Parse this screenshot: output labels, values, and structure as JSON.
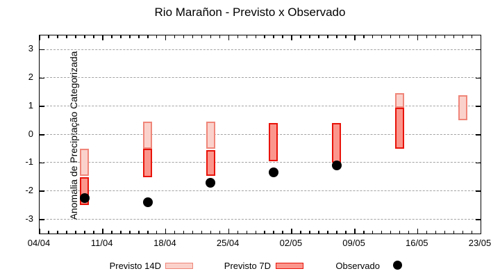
{
  "chart_data": {
    "type": "ranged-bar+scatter",
    "title": "Rio Marañon - Previsto x Observado",
    "ylabel": "Anomalia de Preciptação Categorizada",
    "xlabel": "",
    "ylim": [
      -3.5,
      3.5
    ],
    "y_ticks": [
      3,
      2,
      1,
      0,
      -1,
      -2,
      -3
    ],
    "x_major_ticks": [
      "04/04",
      "11/04",
      "18/04",
      "25/04",
      "02/05",
      "09/05",
      "16/05",
      "23/05"
    ],
    "x_minor_tick_interval_days": 1,
    "x_range_days": 49,
    "grid": "horizontal-dashed",
    "legend_position": "bottom",
    "colors": {
      "grid": "#a3a3a3",
      "axis": "#000000",
      "background": "#ffffff"
    },
    "series": [
      {
        "name": "Previsto 14D",
        "type": "range-bar",
        "fill": "#fbd2cb",
        "border": "#ef8579",
        "points": [
          {
            "date": "09/04",
            "hi": -0.5,
            "lo": -1.45
          },
          {
            "date": "16/04",
            "hi": 0.45,
            "lo": -0.5
          },
          {
            "date": "23/04",
            "hi": 0.45,
            "lo": -0.5
          },
          {
            "date": "14/05",
            "hi": 1.45,
            "lo": 0.95
          },
          {
            "date": "21/05",
            "hi": 1.4,
            "lo": 0.5
          }
        ]
      },
      {
        "name": "Previsto 7D",
        "type": "range-bar",
        "fill": "#fb968d",
        "border": "#e81309",
        "points": [
          {
            "date": "09/04",
            "hi": -1.5,
            "lo": -2.5
          },
          {
            "date": "16/04",
            "hi": -0.5,
            "lo": -1.5
          },
          {
            "date": "23/04",
            "hi": -0.55,
            "lo": -1.45
          },
          {
            "date": "30/04",
            "hi": 0.4,
            "lo": -0.95
          },
          {
            "date": "07/05",
            "hi": 0.4,
            "lo": -1.0
          },
          {
            "date": "14/05",
            "hi": 0.95,
            "lo": -0.5
          }
        ]
      },
      {
        "name": "Observado",
        "type": "scatter",
        "color": "#000000",
        "points": [
          {
            "date": "09/04",
            "value": -2.25
          },
          {
            "date": "16/04",
            "value": -2.4
          },
          {
            "date": "23/04",
            "value": -1.7
          },
          {
            "date": "30/04",
            "value": -1.35
          },
          {
            "date": "07/05",
            "value": -1.1
          }
        ]
      }
    ]
  }
}
